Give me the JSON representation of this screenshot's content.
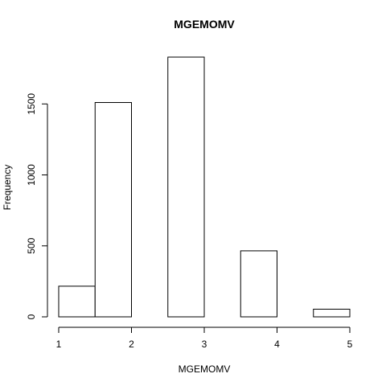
{
  "chart_data": {
    "type": "bar",
    "title": "MGEMOMV",
    "xlabel": "MGEMOMV",
    "ylabel": "Frequency",
    "bins": [
      {
        "x0": 1.0,
        "x1": 1.5,
        "count": 216
      },
      {
        "x0": 1.5,
        "x1": 2.0,
        "count": 1510
      },
      {
        "x0": 2.0,
        "x1": 2.5,
        "count": 0
      },
      {
        "x0": 2.5,
        "x1": 3.0,
        "count": 1830
      },
      {
        "x0": 3.0,
        "x1": 3.5,
        "count": 0
      },
      {
        "x0": 3.5,
        "x1": 4.0,
        "count": 465
      },
      {
        "x0": 4.0,
        "x1": 4.5,
        "count": 0
      },
      {
        "x0": 4.5,
        "x1": 5.0,
        "count": 54
      }
    ],
    "xlim": [
      1,
      5
    ],
    "ylim": [
      0,
      1830
    ],
    "xticks": [
      1,
      2,
      3,
      4,
      5
    ],
    "yticks": [
      0,
      500,
      1000,
      1500
    ],
    "grid": false,
    "bar_fill": "#ffffff",
    "bar_stroke": "#000000"
  }
}
